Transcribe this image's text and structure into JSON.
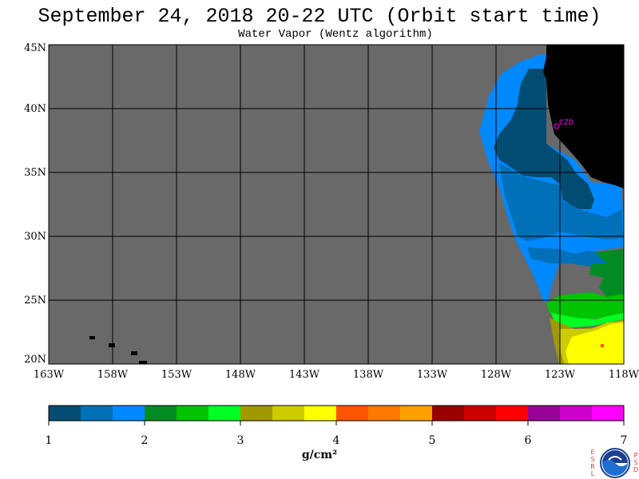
{
  "title": "September 24, 2018  20-22 UTC  (Orbit start time)",
  "subtitle": "Water Vapor (Wentz algorithm)",
  "lat_labels": [
    "45N",
    "40N",
    "35N",
    "30N",
    "25N",
    "20N"
  ],
  "lon_labels": [
    "163W",
    "158W",
    "153W",
    "148W",
    "143W",
    "138W",
    "133W",
    "128W",
    "123W",
    "118W"
  ],
  "station_label": "CZD",
  "colorbar": {
    "colors": [
      "#004c72",
      "#0070b8",
      "#0088ff",
      "#008c22",
      "#00c400",
      "#00ff22",
      "#a09a00",
      "#cccc00",
      "#ffff00",
      "#ff5500",
      "#ff7800",
      "#ffa000",
      "#980000",
      "#c80000",
      "#ff0000",
      "#980098",
      "#cc00cc",
      "#ff00ff"
    ],
    "tick_labels": [
      "1",
      "2",
      "3",
      "4",
      "5",
      "6",
      "7"
    ],
    "units": "g/cm²"
  },
  "logo": {
    "esrl": "E S R L",
    "psd": "P S D",
    "name": "NOAA"
  }
}
